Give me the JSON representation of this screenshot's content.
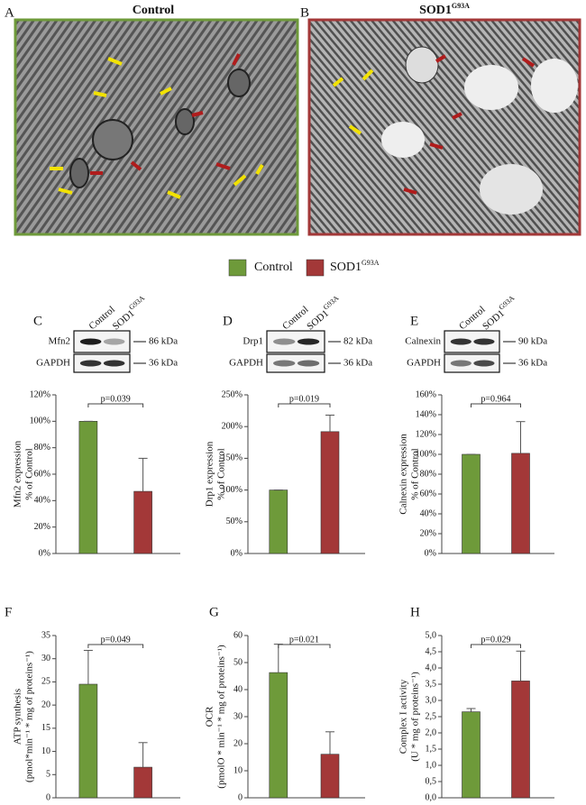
{
  "panels": [
    {
      "letter": "A",
      "title": "Control"
    },
    {
      "letter": "B",
      "title": {
        "base": "SOD1",
        "sup": "G93A"
      }
    }
  ],
  "legend": [
    {
      "text": "Control",
      "color": "#6e9a3a"
    },
    {
      "text": {
        "base": "SOD1",
        "sup": "G93A"
      },
      "color": "#a33838"
    }
  ],
  "blots": [
    {
      "letter": "C",
      "lanes": [
        "Control",
        {
          "base": "SOD1",
          "sup": "G93A"
        }
      ],
      "rows": [
        {
          "protein": "Mfn2",
          "size": "86 kDa"
        },
        {
          "protein": "GAPDH",
          "size": "36 kDa"
        }
      ]
    },
    {
      "letter": "D",
      "lanes": [
        "Control",
        {
          "base": "SOD1",
          "sup": "G93A"
        }
      ],
      "rows": [
        {
          "protein": "Drp1",
          "size": "82 kDa"
        },
        {
          "protein": "GAPDH",
          "size": "36 kDa"
        }
      ]
    },
    {
      "letter": "E",
      "lanes": [
        "Control",
        {
          "base": "SOD1",
          "sup": "G93A"
        }
      ],
      "rows": [
        {
          "protein": "Calnexin",
          "size": "90 kDa"
        },
        {
          "protein": "GAPDH",
          "size": "36 kDa"
        }
      ]
    }
  ],
  "chart_data": [
    {
      "type": "bar",
      "ylabel": [
        "Mfn2 expression",
        "% of Control"
      ],
      "values": [
        100,
        47
      ],
      "errors": [
        0,
        25
      ],
      "colors": [
        "#6e9a3a",
        "#a33838"
      ],
      "annotation": "p=0.039",
      "ylim": [
        0,
        120
      ],
      "yticks": [
        {
          "value": 0,
          "label": "0%"
        },
        {
          "value": 20,
          "label": "20%"
        },
        {
          "value": 40,
          "label": "40%"
        },
        {
          "value": 60,
          "label": "60%"
        },
        {
          "value": 80,
          "label": "80%"
        },
        {
          "value": 100,
          "label": "100%"
        },
        {
          "value": 120,
          "label": "120%"
        }
      ]
    },
    {
      "type": "bar",
      "ylabel": [
        "Drp1 expression",
        "% of Control"
      ],
      "values": [
        100,
        192
      ],
      "errors": [
        0,
        26
      ],
      "colors": [
        "#6e9a3a",
        "#a33838"
      ],
      "annotation": "p=0.019",
      "ylim": [
        0,
        250
      ],
      "yticks": [
        {
          "value": 0,
          "label": "0%"
        },
        {
          "value": 50,
          "label": "50%"
        },
        {
          "value": 100,
          "label": "100%"
        },
        {
          "value": 150,
          "label": "150%"
        },
        {
          "value": 200,
          "label": "200%"
        },
        {
          "value": 250,
          "label": "250%"
        }
      ]
    },
    {
      "type": "bar",
      "ylabel": [
        "Calnexin expression",
        "% of Control"
      ],
      "values": [
        100,
        101
      ],
      "errors": [
        0,
        32
      ],
      "colors": [
        "#6e9a3a",
        "#a33838"
      ],
      "annotation": "p=0.964",
      "ylim": [
        0,
        160
      ],
      "yticks": [
        {
          "value": 0,
          "label": "0%"
        },
        {
          "value": 20,
          "label": "20%"
        },
        {
          "value": 40,
          "label": "40%"
        },
        {
          "value": 60,
          "label": "60%"
        },
        {
          "value": 80,
          "label": "80%"
        },
        {
          "value": 100,
          "label": "100%"
        },
        {
          "value": 120,
          "label": "120%"
        },
        {
          "value": 140,
          "label": "140%"
        },
        {
          "value": 160,
          "label": "160%"
        }
      ]
    },
    {
      "type": "bar",
      "label": "F",
      "ylabel": [
        "ATP synthesis",
        "(pmol*min⁻¹ * mg of proteins⁻¹)"
      ],
      "values": [
        24.5,
        6.6
      ],
      "errors": [
        7.3,
        5.3
      ],
      "colors": [
        "#6e9a3a",
        "#a33838"
      ],
      "annotation": "p=0.049",
      "ylim": [
        0,
        35
      ],
      "yticks": [
        0,
        5,
        10,
        15,
        20,
        25,
        30,
        35
      ]
    },
    {
      "type": "bar",
      "label": "G",
      "ylabel": [
        "OCR",
        "(pmolO * min⁻¹ * mg of proteins⁻¹)"
      ],
      "values": [
        46.3,
        16.1
      ],
      "errors": [
        10.5,
        8.3
      ],
      "colors": [
        "#6e9a3a",
        "#a33838"
      ],
      "annotation": "p=0.021",
      "ylim": [
        0,
        60
      ],
      "yticks": [
        0,
        10,
        20,
        30,
        40,
        50,
        60
      ]
    },
    {
      "type": "bar",
      "label": "H",
      "ylabel": [
        "Complex I activity",
        "(U * mg of proteins⁻¹)"
      ],
      "values": [
        2.65,
        3.6
      ],
      "errors": [
        0.1,
        0.92
      ],
      "colors": [
        "#6e9a3a",
        "#a33838"
      ],
      "annotation": "p=0.029",
      "ylim": [
        0,
        5
      ],
      "yticks": [
        {
          "value": 0,
          "label": "0,0"
        },
        {
          "value": 0.5,
          "label": "0,5"
        },
        {
          "value": 1,
          "label": "1,0"
        },
        {
          "value": 1.5,
          "label": "1,5"
        },
        {
          "value": 2,
          "label": "2,0"
        },
        {
          "value": 2.5,
          "label": "2,5"
        },
        {
          "value": 3,
          "label": "3,0"
        },
        {
          "value": 3.5,
          "label": "3,5"
        },
        {
          "value": 4,
          "label": "4,0"
        },
        {
          "value": 4.5,
          "label": "4,5"
        },
        {
          "value": 5,
          "label": "5,0"
        }
      ]
    }
  ]
}
